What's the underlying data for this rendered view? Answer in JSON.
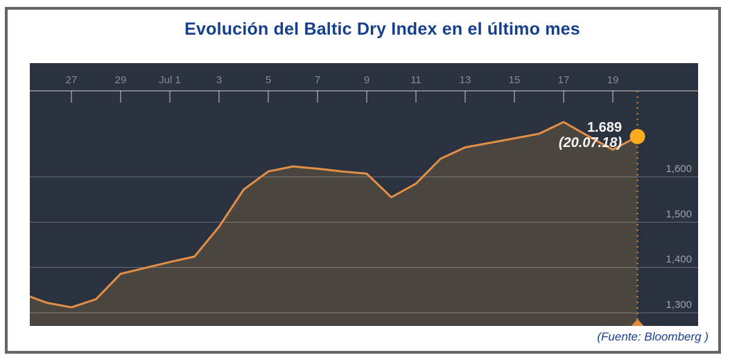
{
  "page": {
    "title": "Evolución del Baltic Dry Index en el último mes",
    "source_note": "(Fuente: Bloomberg )"
  },
  "annotation": {
    "value": "1.689",
    "date": "(20.07.18)"
  },
  "chart_data": {
    "type": "area",
    "title": "Evolución del Baltic Dry Index en el último mes",
    "series_name": "Baltic Dry Index",
    "xlabel": "",
    "ylabel": "",
    "ylim": [
      1250,
      1770
    ],
    "grid": true,
    "legend_position": "none",
    "x_axis_position": "top",
    "y_axis_position": "right",
    "dates": [
      "Jun 25",
      "Jun 26",
      "Jun 27",
      "Jun 28",
      "Jun 29",
      "Jun 30",
      "Jul 1",
      "Jul 2",
      "Jul 3",
      "Jul 4",
      "Jul 5",
      "Jul 6",
      "Jul 7",
      "Jul 8",
      "Jul 9",
      "Jul 10",
      "Jul 11",
      "Jul 12",
      "Jul 13",
      "Jul 14",
      "Jul 15",
      "Jul 16",
      "Jul 17",
      "Jul 18",
      "Jul 19",
      "Jul 20"
    ],
    "values": [
      1342,
      1322,
      1312,
      1330,
      1386,
      1399,
      1412,
      1424,
      1490,
      1572,
      1612,
      1623,
      1618,
      1612,
      1607,
      1555,
      1585,
      1640,
      1665,
      1675,
      1685,
      1695,
      1721,
      1690,
      1660,
      1689
    ],
    "x_ticks": [
      {
        "label": "27",
        "day": 2
      },
      {
        "label": "29",
        "day": 4
      },
      {
        "label": "Jul 1",
        "day": 6
      },
      {
        "label": "3",
        "day": 8
      },
      {
        "label": "5",
        "day": 10
      },
      {
        "label": "7",
        "day": 12
      },
      {
        "label": "9",
        "day": 14
      },
      {
        "label": "11",
        "day": 16
      },
      {
        "label": "13",
        "day": 18
      },
      {
        "label": "15",
        "day": 20
      },
      {
        "label": "17",
        "day": 22
      },
      {
        "label": "19",
        "day": 24
      }
    ],
    "y_ticks": [
      {
        "label": "1,600",
        "value": 1600
      },
      {
        "label": "1,500",
        "value": 1500
      },
      {
        "label": "1,400",
        "value": 1400
      },
      {
        "label": "1,300",
        "value": 1300
      }
    ],
    "last_point": {
      "date": "20.07.18",
      "value": 1689,
      "value_label": "1.689"
    },
    "colors": {
      "plot_background": "#2b323f",
      "line": "#e18f46",
      "area_fill": "rgba(133,107,62,0.35)",
      "marker": "#fcab1f",
      "grid_line": "rgba(255,255,255,0.30)",
      "axis_line": "#b0b5bb",
      "tick_mark": "rgba(255,255,255,0.50)",
      "x_tick_label": "#868c95",
      "y_tick_label": "#9da3ab",
      "cursor_dotted_line": "rgba(235,170,80,0.55)",
      "cursor_triangle": "#e08b41",
      "title_text": "#16408c",
      "annotation_text": "#f7f7f7",
      "source_text": "#1a4090",
      "frame_border": "#636569"
    }
  }
}
